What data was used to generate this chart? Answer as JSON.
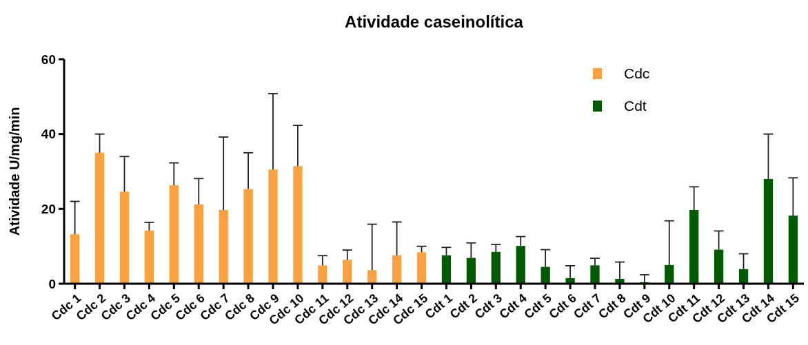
{
  "chart_data": {
    "type": "bar",
    "title": "Atividade caseinolítica",
    "ylabel": "Atividade U/mg/min",
    "categories": [
      "Cdc 1",
      "Cdc 2",
      "Cdc 3",
      "Cdc 4",
      "Cdc 5",
      "Cdc 6",
      "Cdc 7",
      "Cdc 8",
      "Cdc 9",
      "Cdc 10",
      "Cdc 11",
      "Cdc 12",
      "Cdc 13",
      "Cdc 14",
      "Cdc 15",
      "Cdt 1",
      "Cdt 2",
      "Cdt 3",
      "Cdt 4",
      "Cdt 5",
      "Cdt 6",
      "Cdt 7",
      "Cdt 8",
      "Cdt 9",
      "Cdt 10",
      "Cdt 11",
      "Cdt 12",
      "Cdt 13",
      "Cdt 14",
      "Cdt 15"
    ],
    "series": [
      {
        "name": "Cdc",
        "color": "#fba23f",
        "values": [
          13.2,
          35,
          24.6,
          14.2,
          26.3,
          21.2,
          19.7,
          25.3,
          30.5,
          31.4,
          4.9,
          6.4,
          3.6,
          7.6,
          8.4,
          null,
          null,
          null,
          null,
          null,
          null,
          null,
          null,
          null,
          null,
          null,
          null,
          null,
          null,
          null
        ],
        "errors": [
          [
            13.2,
            22
          ],
          [
            35,
            40
          ],
          [
            24.6,
            34
          ],
          [
            14.2,
            16.4
          ],
          [
            26.3,
            32.3
          ],
          [
            21.2,
            28.1
          ],
          [
            19.7,
            39.2
          ],
          [
            25.3,
            35
          ],
          [
            30.5,
            50.8
          ],
          [
            31.4,
            42.3
          ],
          [
            4.9,
            7.5
          ],
          [
            6.4,
            9
          ],
          [
            3.6,
            15.9
          ],
          [
            7.6,
            16.5
          ],
          [
            8.4,
            10
          ],
          null,
          null,
          null,
          null,
          null,
          null,
          null,
          null,
          null,
          null,
          null,
          null,
          null,
          null,
          null
        ]
      },
      {
        "name": "Cdt",
        "color": "#005a00",
        "values": [
          null,
          null,
          null,
          null,
          null,
          null,
          null,
          null,
          null,
          null,
          null,
          null,
          null,
          null,
          null,
          7.6,
          6.9,
          8.5,
          10.1,
          4.5,
          1.5,
          4.9,
          1.3,
          0.4,
          5,
          19.7,
          9.1,
          3.9,
          28,
          18.2
        ],
        "errors": [
          null,
          null,
          null,
          null,
          null,
          null,
          null,
          null,
          null,
          null,
          null,
          null,
          null,
          null,
          null,
          [
            7.6,
            9.7
          ],
          [
            6.9,
            10.9
          ],
          [
            8.5,
            10.5
          ],
          [
            10.1,
            12.6
          ],
          [
            4.5,
            9.1
          ],
          [
            1.5,
            4.8
          ],
          [
            4.9,
            6.8
          ],
          [
            1.3,
            5.8
          ],
          [
            0.4,
            2.4
          ],
          [
            5,
            16.8
          ],
          [
            19.7,
            25.9
          ],
          [
            9.1,
            14.1
          ],
          [
            3.9,
            8
          ],
          [
            28,
            40
          ],
          [
            18.2,
            28.3
          ]
        ]
      }
    ],
    "ylim": [
      0,
      60
    ],
    "yticks": [
      0,
      20,
      40,
      60
    ],
    "legend": "top right"
  }
}
